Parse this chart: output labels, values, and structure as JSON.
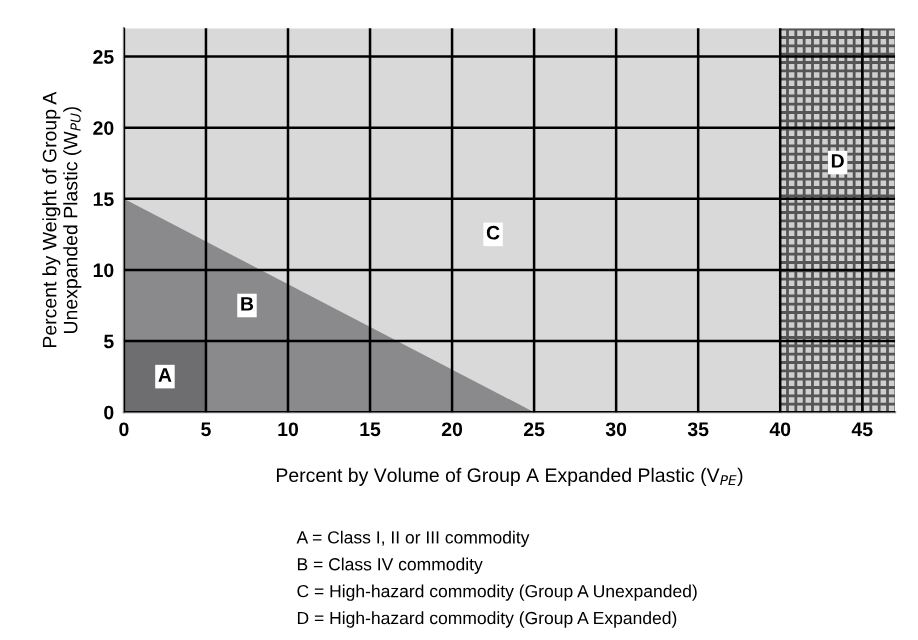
{
  "chart_data": {
    "type": "area",
    "xlabel": "Percent by Volume of Group A Expanded Plastic (V$_{PE}$)",
    "ylabel": "Percent by Weight of Group A\nUnexpanded Plastic (W$_{PU}$)",
    "series": [
      {
        "x": [
          0,
          25
        ],
        "values": [
          15,
          0
        ],
        "color": "#8a8a8c"
      },
      {
        "x": [
          0,
          5
        ],
        "values": [
          5,
          5
        ],
        "color": "#6e6e70"
      }
    ],
    "bands": [
      {
        "axis": "x",
        "from": 0,
        "to": 40,
        "color": "#d9d9d9"
      },
      {
        "axis": "x",
        "from": 40,
        "to": 47,
        "label": "D",
        "color": "#cfcfcf"
      }
    ],
    "xlim": [
      0,
      47
    ],
    "ylim": [
      0,
      27
    ],
    "xticks": [
      0,
      5,
      10,
      15,
      20,
      25,
      30,
      35,
      40,
      45
    ],
    "yticks": [
      0,
      5,
      10,
      15,
      20,
      25
    ],
    "grid": true,
    "annotations": [
      {
        "text": "A",
        "x": 2.5,
        "y": 2.5
      },
      {
        "text": "B",
        "x": 7.5,
        "y": 7.5
      },
      {
        "text": "C",
        "x": 22.5,
        "y": 12.5
      },
      "A = Class I, II or III commodity",
      "B = Class IV commodity",
      "C = High-hazard commodity (Group A Unexpanded)",
      "D = High-hazard commodity (Group A Expanded)"
    ]
  }
}
